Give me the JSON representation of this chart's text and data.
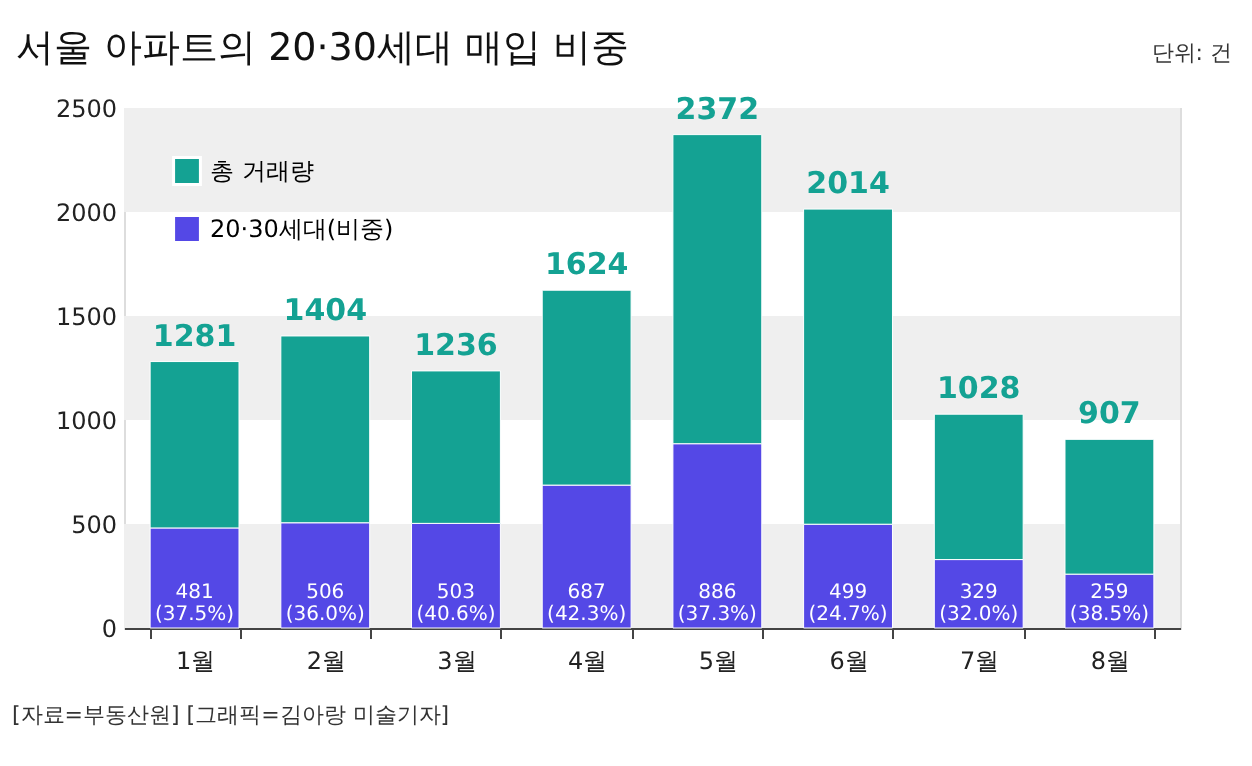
{
  "chart_data": {
    "type": "bar",
    "title": "서울 아파트의 20·30세대 매입 비중",
    "categories": [
      "1월",
      "2월",
      "3월",
      "4월",
      "5월",
      "6월",
      "7월",
      "8월"
    ],
    "stacked": true,
    "series": [
      {
        "name": "20·30세대(비중)",
        "color": "#5448e6",
        "values": [
          481,
          506,
          503,
          687,
          886,
          499,
          329,
          259
        ],
        "value_labels": [
          "481\n(37.5%)",
          "506\n(36.0%)",
          "503\n(40.6%)",
          "687\n(42.3%)",
          "886\n(37.3%)",
          "499\n(24.7%)",
          "329\n(32.0%)",
          "259\n(38.5%)"
        ]
      },
      {
        "name": "총 거래량",
        "color": "#14a293",
        "values": [
          800,
          898,
          733,
          937,
          1486,
          1515,
          699,
          648
        ]
      }
    ],
    "totals": [
      "1281",
      "1404",
      "1236",
      "1624",
      "2372",
      "2014",
      "1028",
      "907"
    ],
    "ylim": [
      0,
      2500
    ],
    "yticks": [
      0,
      500,
      1000,
      1500,
      2000,
      2500
    ],
    "bands": [
      {
        "axis": "y",
        "from": 0,
        "to": 500,
        "color": "#efefef"
      },
      {
        "axis": "y",
        "from": 1000,
        "to": 1500,
        "color": "#efefef"
      },
      {
        "axis": "y",
        "from": 2000,
        "to": 2500,
        "color": "#efefef"
      }
    ],
    "grid": false,
    "legend": "top left",
    "annotations": [
      "단위: 건",
      "[자료=부동산원] [그래픽=김아랑 미술기자]"
    ]
  }
}
